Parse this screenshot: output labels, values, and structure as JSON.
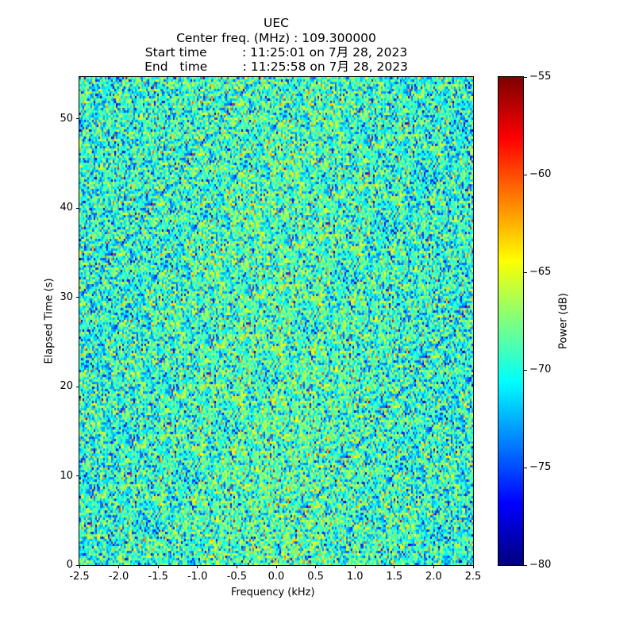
{
  "chart_data": {
    "type": "heatmap",
    "title_lines": [
      "UEC",
      "Center freq. (MHz) : 109.300000",
      "Start time         : 11:25:01 on 7月 28, 2023",
      "End   time         : 11:25:58 on 7月 28, 2023"
    ],
    "xlabel": "Frequency (kHz)",
    "ylabel": "Elapsed Time (s)",
    "xlim": [
      -2.5,
      2.5
    ],
    "ylim": [
      0,
      54.7
    ],
    "xticks": [
      "-2.5",
      "-2.0",
      "-1.5",
      "-1.0",
      "-0.5",
      "0.0",
      "0.5",
      "1.0",
      "1.5",
      "2.0",
      "2.5"
    ],
    "yticks": [
      "0",
      "10",
      "20",
      "30",
      "40",
      "50"
    ],
    "colorbar": {
      "label": "Power (dB)",
      "range": [
        -80,
        -55
      ],
      "ticks": [
        "−80",
        "−75",
        "−70",
        "−65",
        "−60",
        "−55"
      ],
      "colormap": "jet"
    },
    "grid": false,
    "data_description": "noise spectrogram",
    "approx_mean_db": -70,
    "approx_std_db": 3.2,
    "approx_bins_freq": 248,
    "approx_bins_time": 205
  }
}
